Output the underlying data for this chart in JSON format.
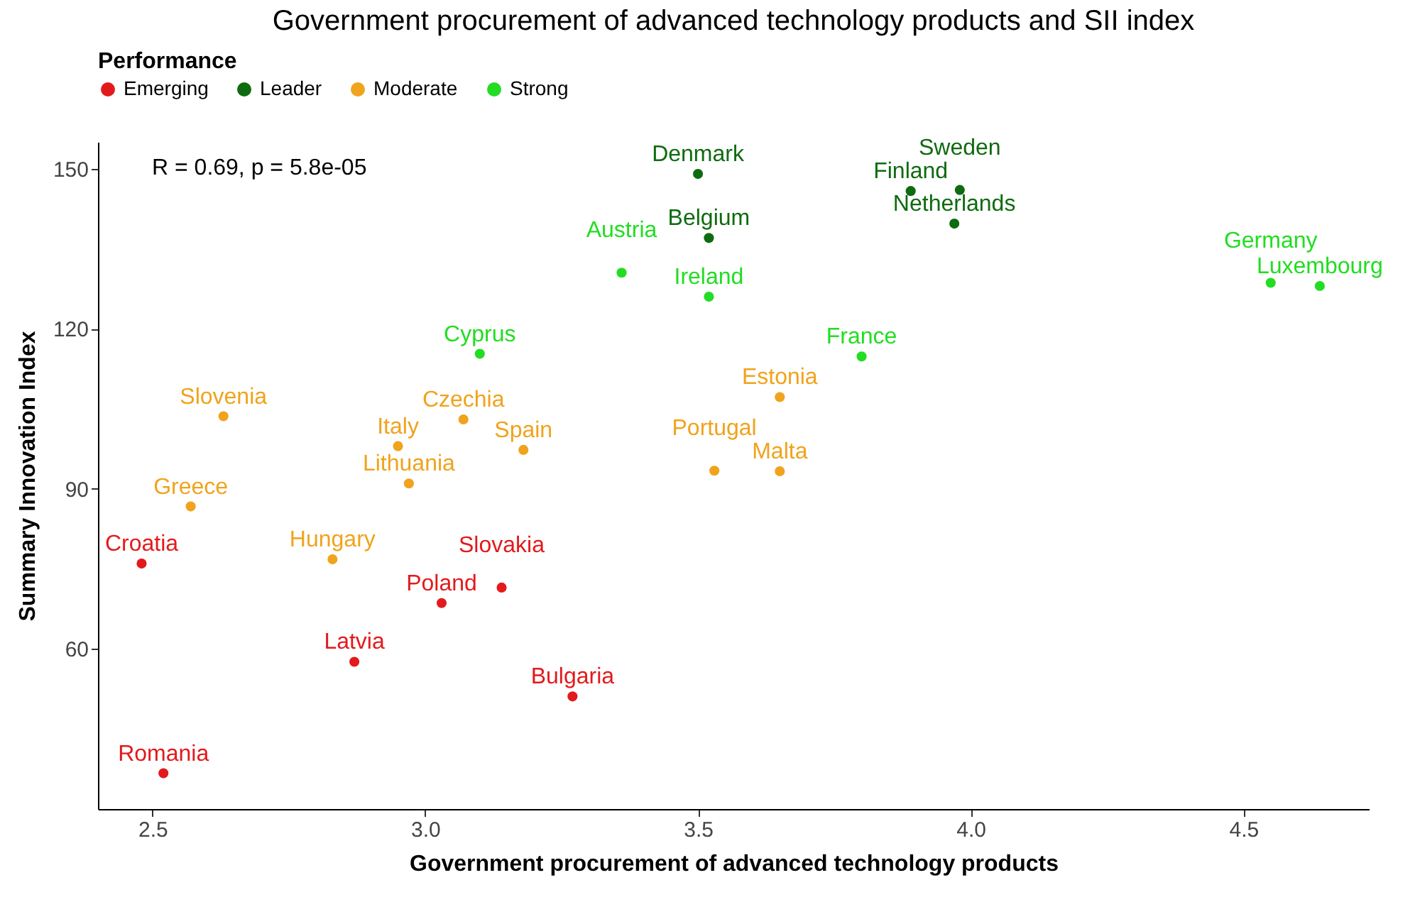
{
  "chart_data": {
    "type": "scatter",
    "title": "Government procurement of advanced technology products and SII index",
    "xlabel": "Government procurement of advanced technology products",
    "ylabel": "Summary Innovation Index",
    "legend_title": "Performance",
    "legend": "top",
    "grid": false,
    "marker": "circle",
    "xlim": [
      2.4,
      4.73
    ],
    "ylim": [
      30,
      155
    ],
    "xticks": [
      2.5,
      {
        "value": 3,
        "label": "3.0"
      },
      3.5,
      {
        "value": 4,
        "label": "4.0"
      },
      4.5
    ],
    "yticks": [
      60,
      90,
      120,
      150
    ],
    "series": [
      {
        "name": "Emerging",
        "color": "#e31a1c",
        "x": [
          2.52,
          2.48,
          2.87,
          3.03,
          3.14,
          3.27
        ],
        "values": [
          36.7,
          76,
          57.6,
          68.6,
          71.5,
          51.1
        ]
      },
      {
        "name": "Leader",
        "color": "#0f6b0f",
        "x": [
          3.52,
          3.5,
          3.89,
          3.98,
          3.97
        ],
        "values": [
          137,
          149,
          145.8,
          146,
          139.7
        ]
      },
      {
        "name": "Moderate",
        "color": "#f0a31c",
        "x": [
          2.83,
          2.57,
          2.63,
          2.95,
          2.97,
          3.07,
          3.18,
          3.53,
          3.65,
          3.65
        ],
        "values": [
          76.8,
          86.7,
          103.6,
          98,
          91,
          103,
          97.3,
          93.4,
          93.3,
          107.2
        ]
      },
      {
        "name": "Strong",
        "color": "#22dd22",
        "x": [
          3.1,
          3.8,
          3.36,
          3.52,
          4.55,
          4.64
        ],
        "values": [
          115.3,
          114.8,
          130.5,
          126,
          128.6,
          128
        ]
      }
    ],
    "annotations": [
      "R = 0.69, p = 5.8e-05",
      {
        "text": "Romania",
        "x": 2.52,
        "y": 36.7
      },
      {
        "text": "Croatia",
        "x": 2.48,
        "y": 76
      },
      {
        "text": "Latvia",
        "x": 2.87,
        "y": 57.6
      },
      {
        "text": "Poland",
        "x": 3.03,
        "y": 68.6
      },
      {
        "text": "Slovakia",
        "x": 3.14,
        "y": 71.5
      },
      {
        "text": "Bulgaria",
        "x": 3.27,
        "y": 51.1
      },
      {
        "text": "Belgium",
        "x": 3.52,
        "y": 137
      },
      {
        "text": "Denmark",
        "x": 3.5,
        "y": 149
      },
      {
        "text": "Finland",
        "x": 3.89,
        "y": 145.8
      },
      {
        "text": "Sweden",
        "x": 3.98,
        "y": 146
      },
      {
        "text": "Netherlands",
        "x": 3.97,
        "y": 139.7
      },
      {
        "text": "Hungary",
        "x": 2.83,
        "y": 76.8
      },
      {
        "text": "Greece",
        "x": 2.57,
        "y": 86.7
      },
      {
        "text": "Slovenia",
        "x": 2.63,
        "y": 103.6
      },
      {
        "text": "Italy",
        "x": 2.95,
        "y": 98
      },
      {
        "text": "Lithuania",
        "x": 2.97,
        "y": 91
      },
      {
        "text": "Czechia",
        "x": 3.07,
        "y": 103
      },
      {
        "text": "Spain",
        "x": 3.18,
        "y": 97.3
      },
      {
        "text": "Portugal",
        "x": 3.53,
        "y": 93.4
      },
      {
        "text": "Malta",
        "x": 3.65,
        "y": 93.3
      },
      {
        "text": "Estonia",
        "x": 3.65,
        "y": 107.2
      },
      {
        "text": "Cyprus",
        "x": 3.1,
        "y": 115.3
      },
      {
        "text": "France",
        "x": 3.8,
        "y": 114.8
      },
      {
        "text": "Austria",
        "x": 3.36,
        "y": 130.5
      },
      {
        "text": "Ireland",
        "x": 3.52,
        "y": 126
      },
      {
        "text": "Germany",
        "x": 4.55,
        "y": 128.6
      },
      {
        "text": "Luxembourg",
        "x": 4.64,
        "y": 128
      }
    ]
  }
}
